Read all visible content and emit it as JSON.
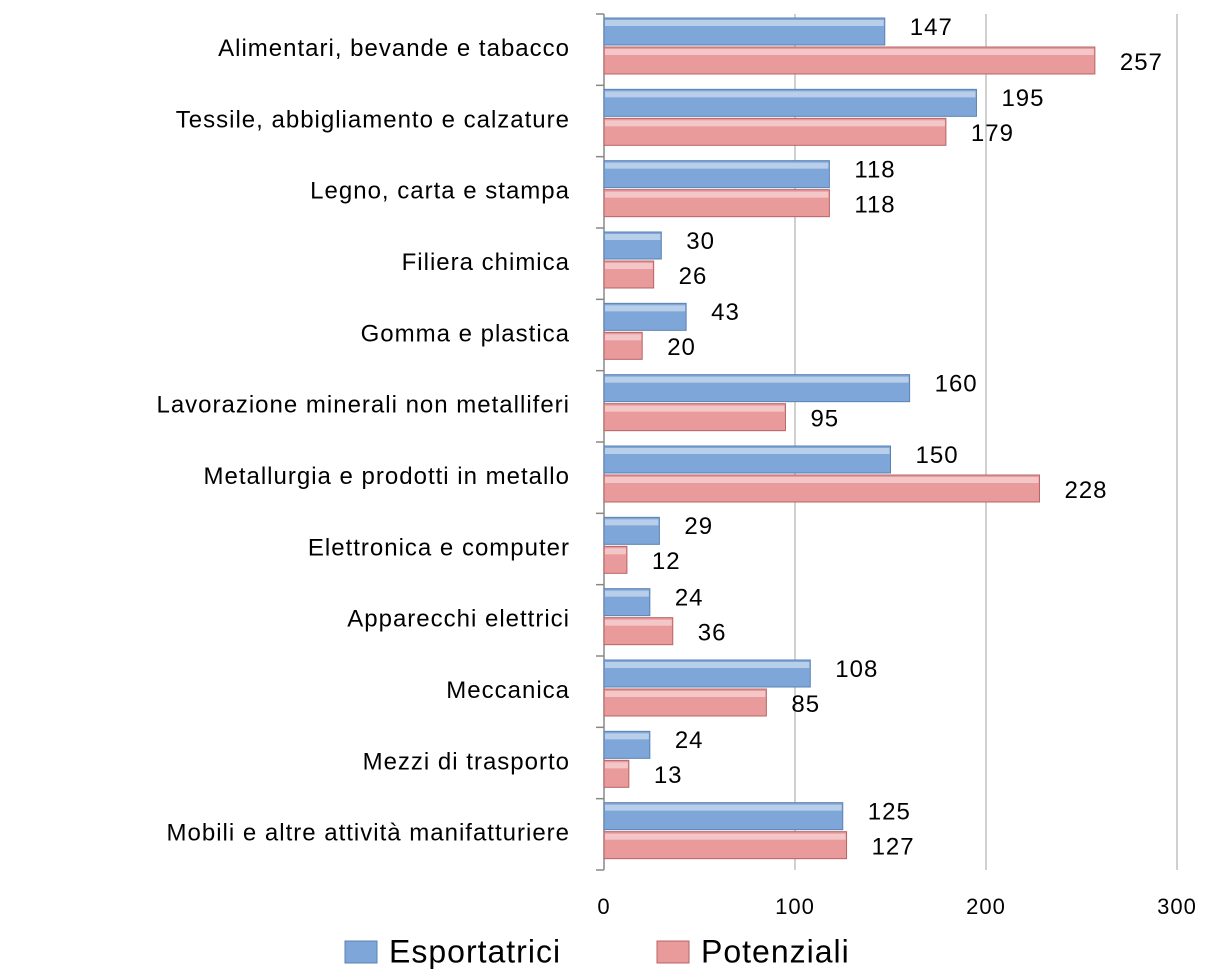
{
  "chart_data": {
    "type": "bar",
    "orientation": "horizontal",
    "categories": [
      "Alimentari, bevande e tabacco",
      "Tessile, abbigliamento e calzature",
      "Legno, carta e stampa",
      "Filiera chimica",
      "Gomma e plastica",
      "Lavorazione minerali non metalliferi",
      "Metallurgia e prodotti in metallo",
      "Elettronica e computer",
      "Apparecchi elettrici",
      "Meccanica",
      "Mezzi di trasporto",
      "Mobili e altre attività manifatturiere"
    ],
    "series": [
      {
        "name": "Esportatrici",
        "color": "#7ea6d8",
        "values": [
          147,
          195,
          118,
          30,
          43,
          160,
          150,
          29,
          24,
          108,
          24,
          125
        ]
      },
      {
        "name": "Potenziali",
        "color": "#e99a9b",
        "values": [
          257,
          179,
          118,
          26,
          20,
          95,
          228,
          12,
          36,
          85,
          13,
          127
        ]
      }
    ],
    "xlim": [
      0,
      300
    ],
    "xticks": [
      0,
      100,
      200,
      300
    ],
    "grid": true,
    "legend": "bottom"
  }
}
